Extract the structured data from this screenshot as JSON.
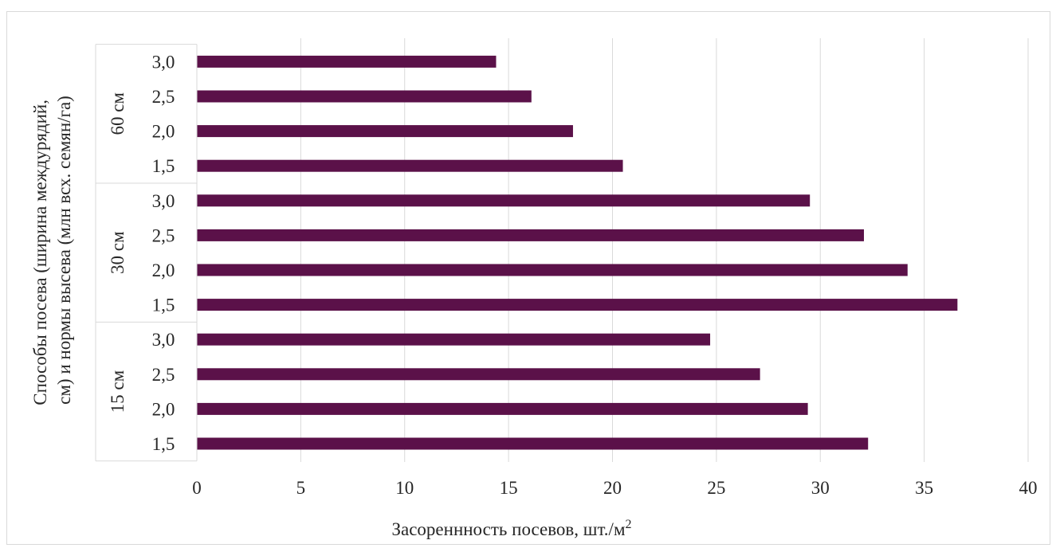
{
  "chart_data": {
    "type": "bar",
    "orientation": "horizontal",
    "xlabel": "Засореннность посевов, шт./м",
    "xlabel_superscript": "2",
    "ylabel_lines": [
      "Способы посева (ширина междурядий,",
      "см) и нормы высева (млн всх. семян/га)"
    ],
    "xlim": [
      0,
      40
    ],
    "x_ticks": [
      "0",
      "5",
      "10",
      "15",
      "20",
      "25",
      "30",
      "35",
      "40"
    ],
    "grid": "vertical",
    "bar_color": "#5b1149",
    "groups": [
      {
        "label": "15 см",
        "categories": [
          "1,5",
          "2,0",
          "2,5",
          "3,0"
        ],
        "values": [
          32.3,
          29.4,
          27.1,
          24.7
        ]
      },
      {
        "label": "30 см",
        "categories": [
          "1,5",
          "2,0",
          "2,5",
          "3,0"
        ],
        "values": [
          36.6,
          34.2,
          32.1,
          29.5
        ]
      },
      {
        "label": "60 см",
        "categories": [
          "1,5",
          "2,0",
          "2,5",
          "3,0"
        ],
        "values": [
          20.5,
          18.1,
          16.1,
          14.4
        ]
      }
    ]
  }
}
